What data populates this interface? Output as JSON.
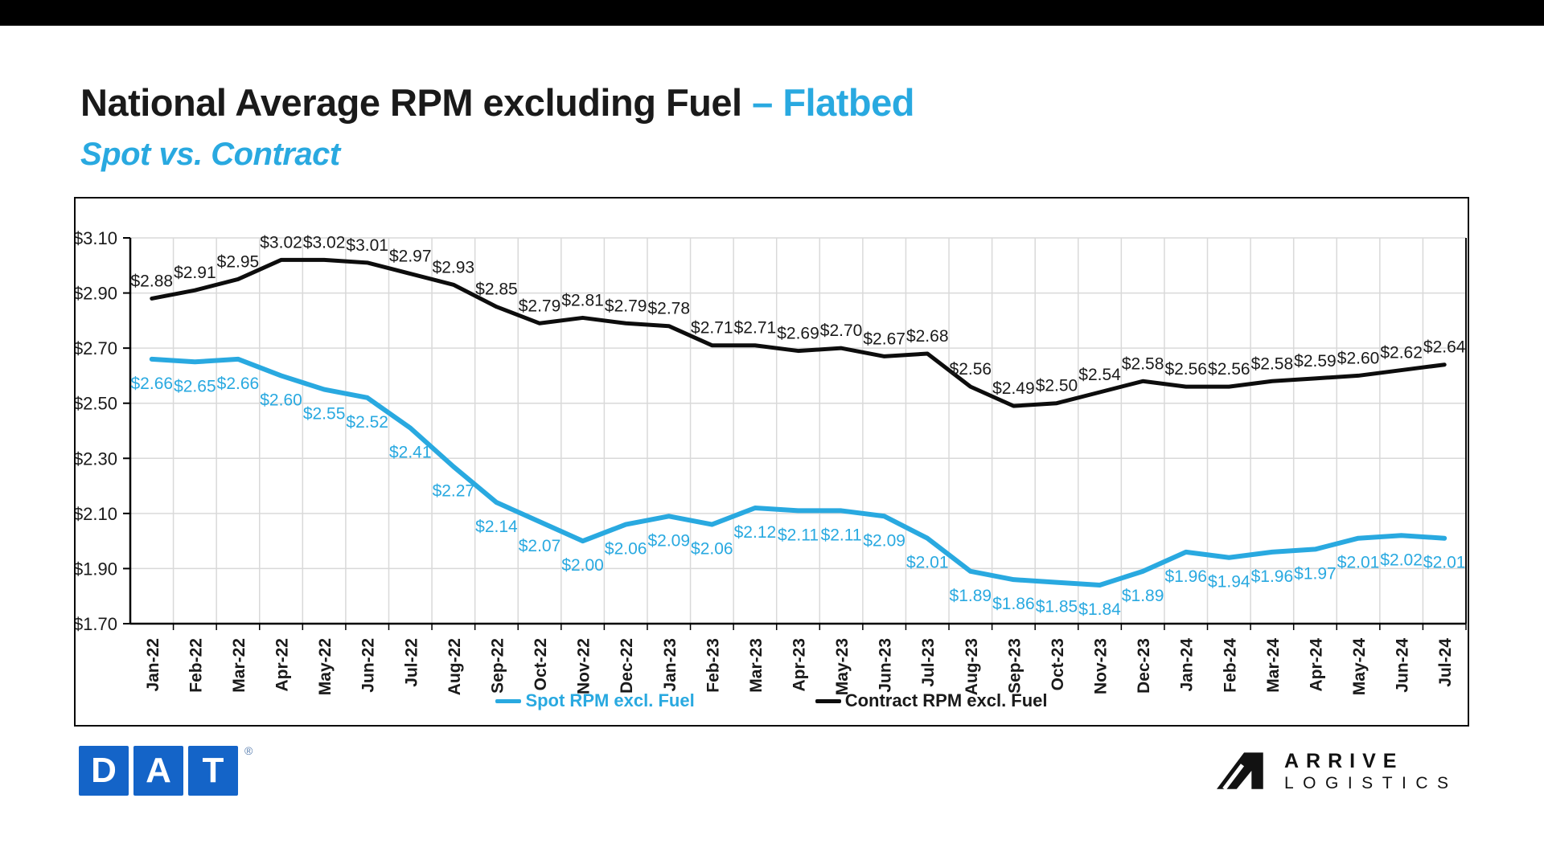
{
  "page": {
    "top_bar_color": "#000000",
    "background_color": "#ffffff"
  },
  "header": {
    "title_main": "National Average RPM excluding Fuel ",
    "title_accent": "– Flatbed",
    "subtitle": "Spot vs. Contract",
    "accent_color": "#29A9E0"
  },
  "chart_data": {
    "type": "line",
    "categories": [
      "Jan-22",
      "Feb-22",
      "Mar-22",
      "Apr-22",
      "May-22",
      "Jun-22",
      "Jul-22",
      "Aug-22",
      "Sep-22",
      "Oct-22",
      "Nov-22",
      "Dec-22",
      "Jan-23",
      "Feb-23",
      "Mar-23",
      "Apr-23",
      "May-23",
      "Jun-23",
      "Jul-23",
      "Aug-23",
      "Sep-23",
      "Oct-23",
      "Nov-23",
      "Dec-23",
      "Jan-24",
      "Feb-24",
      "Mar-24",
      "Apr-24",
      "May-24",
      "Jun-24",
      "Jul-24"
    ],
    "series": [
      {
        "name": "Spot RPM excl. Fuel",
        "color": "#29A9E0",
        "label_color": "#29A9E0",
        "label_position": "below",
        "line_width": 6,
        "values": [
          2.66,
          2.65,
          2.66,
          2.6,
          2.55,
          2.52,
          2.41,
          2.27,
          2.14,
          2.07,
          2.0,
          2.06,
          2.09,
          2.06,
          2.12,
          2.11,
          2.11,
          2.09,
          2.01,
          1.89,
          1.86,
          1.85,
          1.84,
          1.89,
          1.96,
          1.94,
          1.96,
          1.97,
          2.01,
          2.02,
          2.01
        ]
      },
      {
        "name": "Contract RPM excl. Fuel",
        "color": "#0d0d0d",
        "label_color": "#1a1a1a",
        "label_position": "above",
        "line_width": 5,
        "values": [
          2.88,
          2.91,
          2.95,
          3.02,
          3.02,
          3.01,
          2.97,
          2.93,
          2.85,
          2.79,
          2.81,
          2.79,
          2.78,
          2.71,
          2.71,
          2.69,
          2.7,
          2.67,
          2.68,
          2.56,
          2.49,
          2.5,
          2.54,
          2.58,
          2.56,
          2.56,
          2.58,
          2.59,
          2.6,
          2.62,
          2.64
        ]
      }
    ],
    "value_prefix": "$",
    "yticks": [
      3.1,
      2.9,
      2.7,
      2.5,
      2.3,
      2.1,
      1.9,
      1.7
    ],
    "ylim": [
      1.7,
      3.1
    ],
    "grid": true,
    "grid_color": "#D9D9D9",
    "legend_position": "bottom"
  },
  "footer": {
    "dat": {
      "letters": [
        "D",
        "A",
        "T"
      ],
      "registered_mark": "®",
      "color": "#1464C8"
    },
    "arrive": {
      "line1": "ARRIVE",
      "line2": "LOGISTICS"
    }
  }
}
